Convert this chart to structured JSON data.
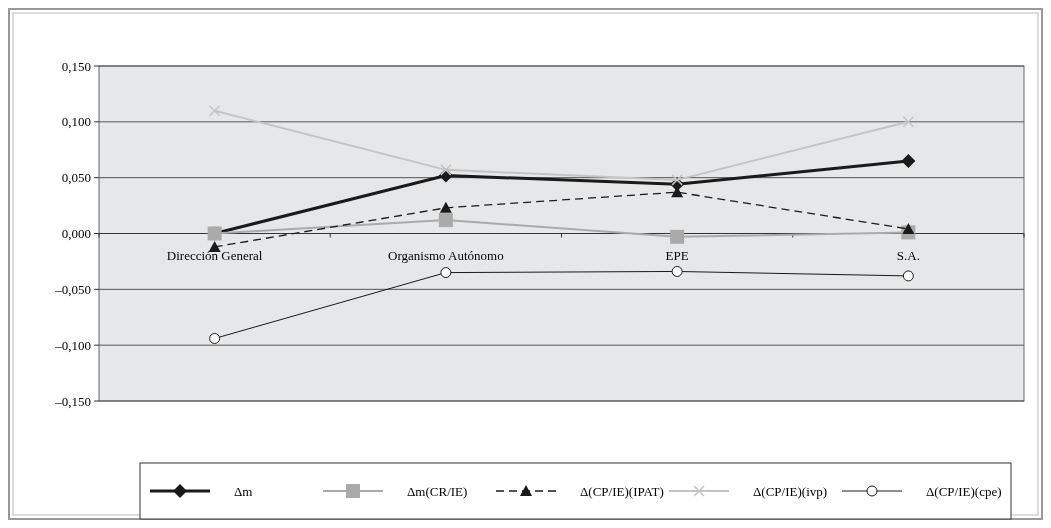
{
  "chart_data": {
    "type": "line",
    "categories": [
      "Dirección General",
      "Organismo Autónomo",
      "EPE",
      "S.A."
    ],
    "ylim": [
      -0.15,
      0.15
    ],
    "yticks": [
      {
        "value": -0.15,
        "label": "–0,150"
      },
      {
        "value": -0.1,
        "label": "–0,100"
      },
      {
        "value": -0.05,
        "label": "–0,050"
      },
      {
        "value": 0,
        "label": "0,000"
      },
      {
        "value": 0.05,
        "label": "0,050"
      },
      {
        "value": 0.1,
        "label": "0,100"
      },
      {
        "value": 0.15,
        "label": "0,150"
      }
    ],
    "grid": "y",
    "legend": "bottom",
    "line_style": "solid",
    "series": [
      {
        "name": "Δm",
        "color": "#1a1a1a",
        "marker": "diamond",
        "values": [
          0.0,
          0.052,
          0.044,
          0.065
        ]
      },
      {
        "name": "Δm(CR/IE)",
        "color": "#aaaaaa",
        "marker": "square",
        "values": [
          0.0,
          0.012,
          -0.003,
          0.001
        ]
      },
      {
        "name": "Δ(CP/IE)(IPAT)",
        "color": "#1a1a1a",
        "marker": "triangle",
        "line_style": "dashed",
        "values": [
          -0.012,
          0.023,
          0.037,
          0.004
        ]
      },
      {
        "name": "Δ(CP/IE)(ivp)",
        "color": "#c4c4c4",
        "marker": "cross",
        "values": [
          0.11,
          0.057,
          0.048,
          0.1
        ]
      },
      {
        "name": "Δ(CP/IE)(cpe)",
        "color": "#1a1a1a",
        "marker": "circle",
        "values": [
          -0.094,
          -0.035,
          -0.034,
          -0.038
        ]
      }
    ]
  }
}
